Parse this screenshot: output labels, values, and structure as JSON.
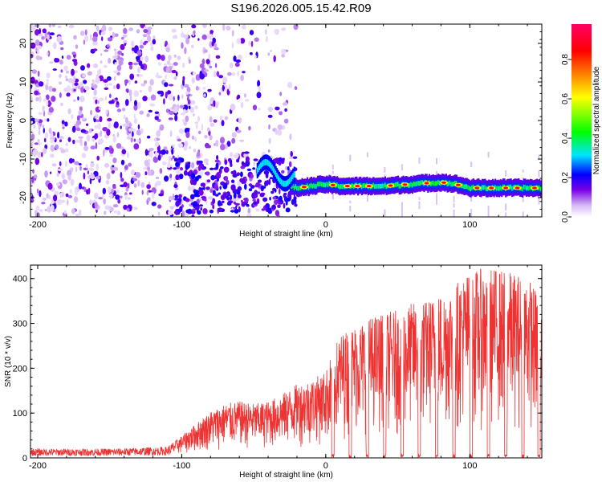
{
  "title": "S196.2026.005.15.42.R09",
  "chart_data": [
    {
      "type": "heatmap",
      "xlabel": "Height of straight line (km)",
      "ylabel": "Frequency (Hz)",
      "xlim": [
        -205,
        150
      ],
      "ylim": [
        -25,
        25
      ],
      "xticks": [
        -200,
        -100,
        0,
        100
      ],
      "yticks": [
        -20,
        -10,
        0,
        10,
        20
      ],
      "colorbar": {
        "label": "Normalized spectral amplitude",
        "range": [
          0.0,
          0.98
        ],
        "ticks": [
          0.0,
          0.2,
          0.4,
          0.6,
          0.8
        ],
        "tick_labels": [
          "0.0",
          "0.2",
          "0.4",
          "0.6",
          "0.8"
        ],
        "colormap": [
          "#ffffff",
          "#d6b8f5",
          "#7a00e6",
          "#0000ff",
          "#00e5ff",
          "#00ff00",
          "#ffff00",
          "#ff8000",
          "#ff0000",
          "#ff0066"
        ]
      },
      "dominant_band": {
        "x": [
          -25,
          -20,
          -10,
          0,
          10,
          20,
          40,
          60,
          80,
          90,
          100,
          120,
          140,
          150
        ],
        "frequency": [
          -17,
          -17.5,
          -17,
          -16.5,
          -17,
          -17,
          -17,
          -16.5,
          -16,
          -16.5,
          -17.5,
          -17.5,
          -17.5,
          -17.5
        ]
      },
      "noise_region_x": [
        -205,
        -20
      ]
    },
    {
      "type": "line",
      "xlabel": "Height of straight line (km)",
      "ylabel": "SNR (10 * v/v)",
      "xlim": [
        -205,
        150
      ],
      "ylim": [
        0,
        430
      ],
      "xticks": [
        -200,
        -100,
        0,
        100
      ],
      "yticks": [
        0,
        100,
        200,
        300,
        400
      ],
      "line_color": "#ee3333",
      "envelope": {
        "x": [
          -205,
          -150,
          -110,
          -100,
          -90,
          -80,
          -70,
          -60,
          -50,
          -40,
          -30,
          -20,
          -10,
          0,
          5,
          10,
          20,
          30,
          40,
          50,
          60,
          70,
          80,
          90,
          100,
          110,
          120,
          130,
          140,
          150
        ],
        "y": [
          18,
          18,
          22,
          45,
          70,
          95,
          110,
          115,
          110,
          115,
          130,
          150,
          160,
          175,
          220,
          250,
          270,
          285,
          295,
          300,
          315,
          320,
          335,
          355,
          380,
          385,
          385,
          375,
          370,
          320
        ]
      },
      "dips_x": [
        5,
        17,
        29,
        41,
        53,
        65,
        77,
        89,
        101,
        113,
        125,
        137,
        148
      ]
    }
  ]
}
